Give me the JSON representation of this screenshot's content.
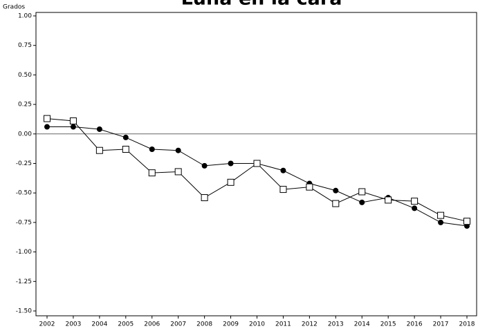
{
  "chart_data": {
    "type": "line",
    "title": "Luna en la cara",
    "y_label": "Grados",
    "categories": [
      "2002",
      "2003",
      "2004",
      "2005",
      "2006",
      "2007",
      "2008",
      "2009",
      "2010",
      "2011",
      "2012",
      "2013",
      "2014",
      "2015",
      "2016",
      "2017",
      "2018"
    ],
    "series": [
      {
        "color": "#000000",
        "marker": "circle",
        "values": [
          0.06,
          0.06,
          0.04,
          -0.03,
          -0.13,
          -0.14,
          -0.27,
          -0.25,
          -0.25,
          -0.31,
          -0.42,
          -0.48,
          -0.58,
          -0.54,
          -0.63,
          -0.75,
          -0.78
        ]
      },
      {
        "color": "#000000",
        "marker": "square",
        "values": [
          0.13,
          0.11,
          -0.14,
          -0.13,
          -0.33,
          -0.32,
          -0.54,
          -0.41,
          -0.25,
          -0.47,
          -0.45,
          -0.59,
          -0.49,
          -0.56,
          -0.57,
          -0.69,
          -0.74
        ]
      }
    ],
    "ylim": [
      -1.5,
      1.0
    ],
    "yticks": [
      {
        "value": 1.0,
        "label": "1.00"
      },
      {
        "value": 0.75,
        "label": "0.75"
      },
      {
        "value": 0.5,
        "label": "0.50"
      },
      {
        "value": 0.25,
        "label": "0.25"
      },
      {
        "value": 0,
        "label": "0.00"
      },
      {
        "value": -0.25,
        "label": "-0.25"
      },
      {
        "value": -0.5,
        "label": "-0.50"
      },
      {
        "value": -0.75,
        "label": "-0.75"
      },
      {
        "value": -1.0,
        "label": "-1.00"
      },
      {
        "value": -1.25,
        "label": "-1.25"
      },
      {
        "value": -1.5,
        "label": "-1.50"
      }
    ],
    "reference_line": 0
  }
}
